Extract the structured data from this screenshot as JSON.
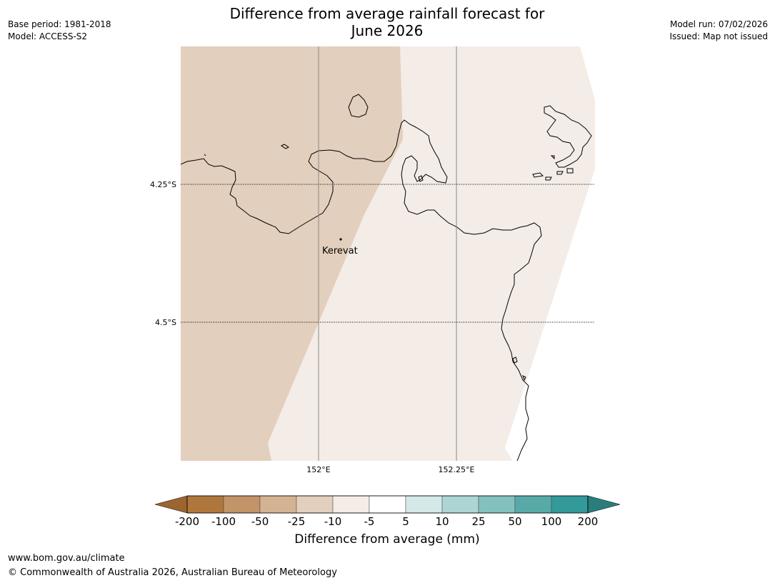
{
  "title_line1": "Difference from average rainfall forecast for",
  "title_line2": "June 2026",
  "meta_left": {
    "base_period": "Base period: 1981-2018",
    "model": "Model: ACCESS-S2"
  },
  "meta_right": {
    "model_run": "Model run: 07/02/2026",
    "issued": "Issued: Map not issued"
  },
  "map": {
    "place_label": "Kerevat",
    "lat_labels": [
      "4.25°S",
      "4.5°S"
    ],
    "lon_labels": [
      "152°E",
      "152.25°E"
    ]
  },
  "legend": {
    "label": "Difference from average (mm)",
    "ticks": [
      "-200",
      "-100",
      "-50",
      "-25",
      "-10",
      "-5",
      "5",
      "10",
      "25",
      "50",
      "100",
      "200"
    ],
    "colors": [
      "#9c6530",
      "#b0773d",
      "#c29468",
      "#d4b393",
      "#e3cfbd",
      "#f4ece6",
      "#ffffff",
      "#d5e8e8",
      "#acd5d4",
      "#83c1be",
      "#58aaa8",
      "#339999",
      "#2b7d7d"
    ]
  },
  "footer": {
    "url": "www.bom.gov.au/climate",
    "copyright": "© Commonwealth of Australia 2026, Australian Bureau of Meteorology"
  }
}
